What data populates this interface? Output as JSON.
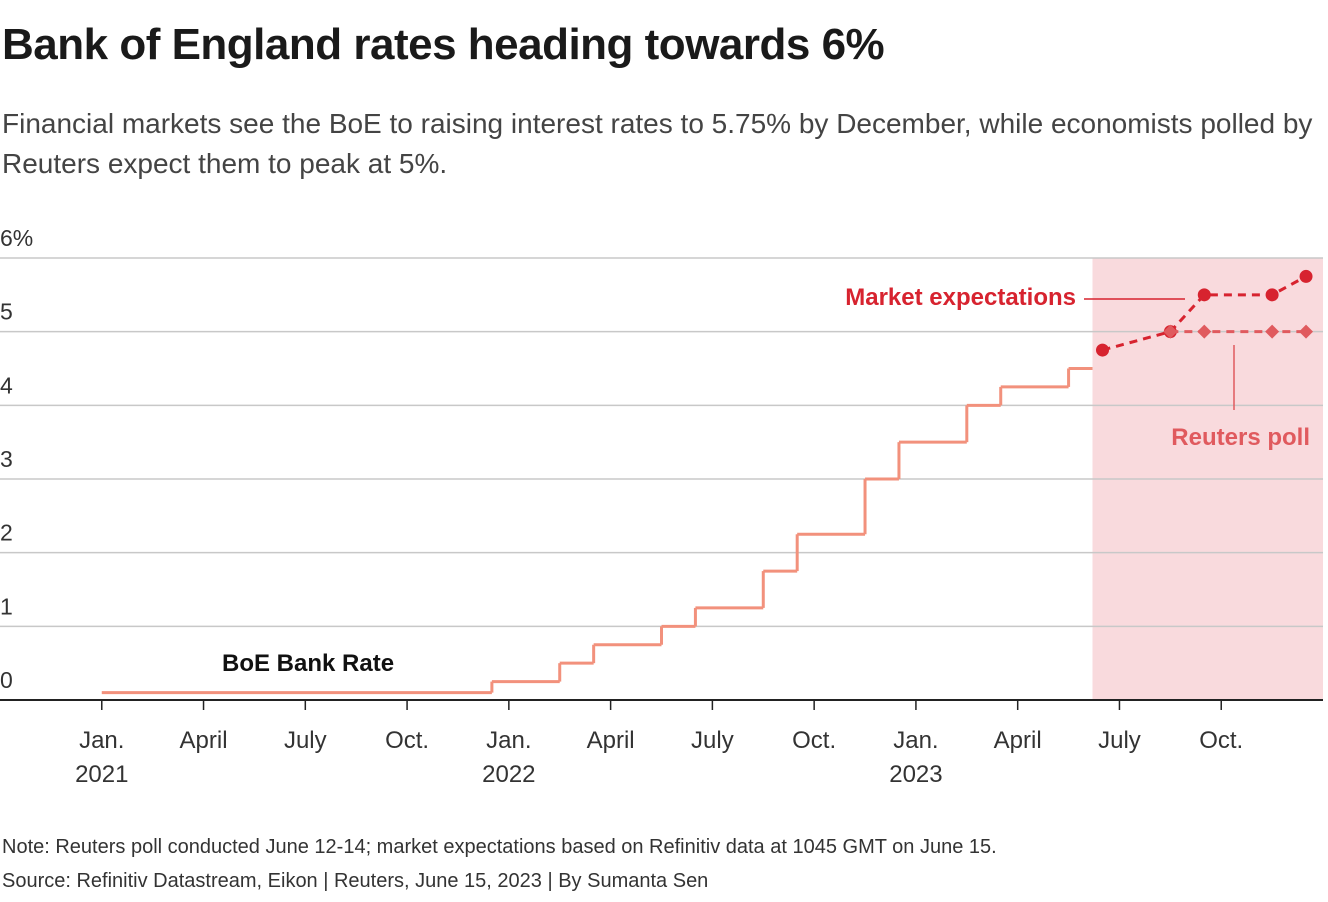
{
  "chart_data": {
    "type": "line",
    "title": "Bank of England rates heading towards 6%",
    "subtitle": "Financial markets see the BoE to raising interest rates to 5.75% by December, while economists polled by Reuters expect them to peak at 5%.",
    "note": "Note: Reuters poll conducted June 12-14; market expectations based on Refinitiv data at 1045 GMT on June 15.",
    "source": "Source: Refinitiv Datastream, Eikon | Reuters, June 15, 2023 | By Sumanta Sen",
    "xlim": [
      "2020-10",
      "2024-01"
    ],
    "xticks": [
      {
        "value": "2021-01",
        "label": "Jan.",
        "year": "2021"
      },
      {
        "value": "2021-04",
        "label": "April"
      },
      {
        "value": "2021-07",
        "label": "July"
      },
      {
        "value": "2021-10",
        "label": "Oct."
      },
      {
        "value": "2022-01",
        "label": "Jan.",
        "year": "2022"
      },
      {
        "value": "2022-04",
        "label": "April"
      },
      {
        "value": "2022-07",
        "label": "July"
      },
      {
        "value": "2022-10",
        "label": "Oct."
      },
      {
        "value": "2023-01",
        "label": "Jan.",
        "year": "2023"
      },
      {
        "value": "2023-04",
        "label": "April"
      },
      {
        "value": "2023-07",
        "label": "July"
      },
      {
        "value": "2023-10",
        "label": "Oct."
      }
    ],
    "ylim": [
      0,
      6
    ],
    "yticks": [
      0,
      1,
      2,
      3,
      4,
      5,
      {
        "value": 6,
        "label": "6%"
      }
    ],
    "grid": true,
    "series": [
      {
        "name": "BoE Bank Rate",
        "color": "#f2917c",
        "step": true,
        "x": [
          "2021-01",
          "2021-12",
          "2022-02",
          "2022-03",
          "2022-05",
          "2022-06",
          "2022-08",
          "2022-09",
          "2022-11",
          "2022-12",
          "2023-02",
          "2023-03",
          "2023-05"
        ],
        "values": [
          0.1,
          0.25,
          0.5,
          0.75,
          1.0,
          1.25,
          1.75,
          2.25,
          3.0,
          3.5,
          4.0,
          4.25,
          4.5
        ]
      },
      {
        "name": "Market expectations",
        "color": "#d7232f",
        "forecast": true,
        "marker": "circle",
        "x": [
          "2023-06",
          "2023-08",
          "2023-09",
          "2023-11",
          "2023-12"
        ],
        "values": [
          4.75,
          5.0,
          5.5,
          5.5,
          5.75
        ]
      },
      {
        "name": "Reuters poll",
        "color": "#e05a5e",
        "forecast": true,
        "marker": "diamond",
        "x": [
          "2023-08",
          "2023-09",
          "2023-11",
          "2023-12"
        ],
        "values": [
          5.0,
          5.0,
          5.0,
          5.0
        ]
      }
    ],
    "forecast_color": "#f9dadd"
  }
}
